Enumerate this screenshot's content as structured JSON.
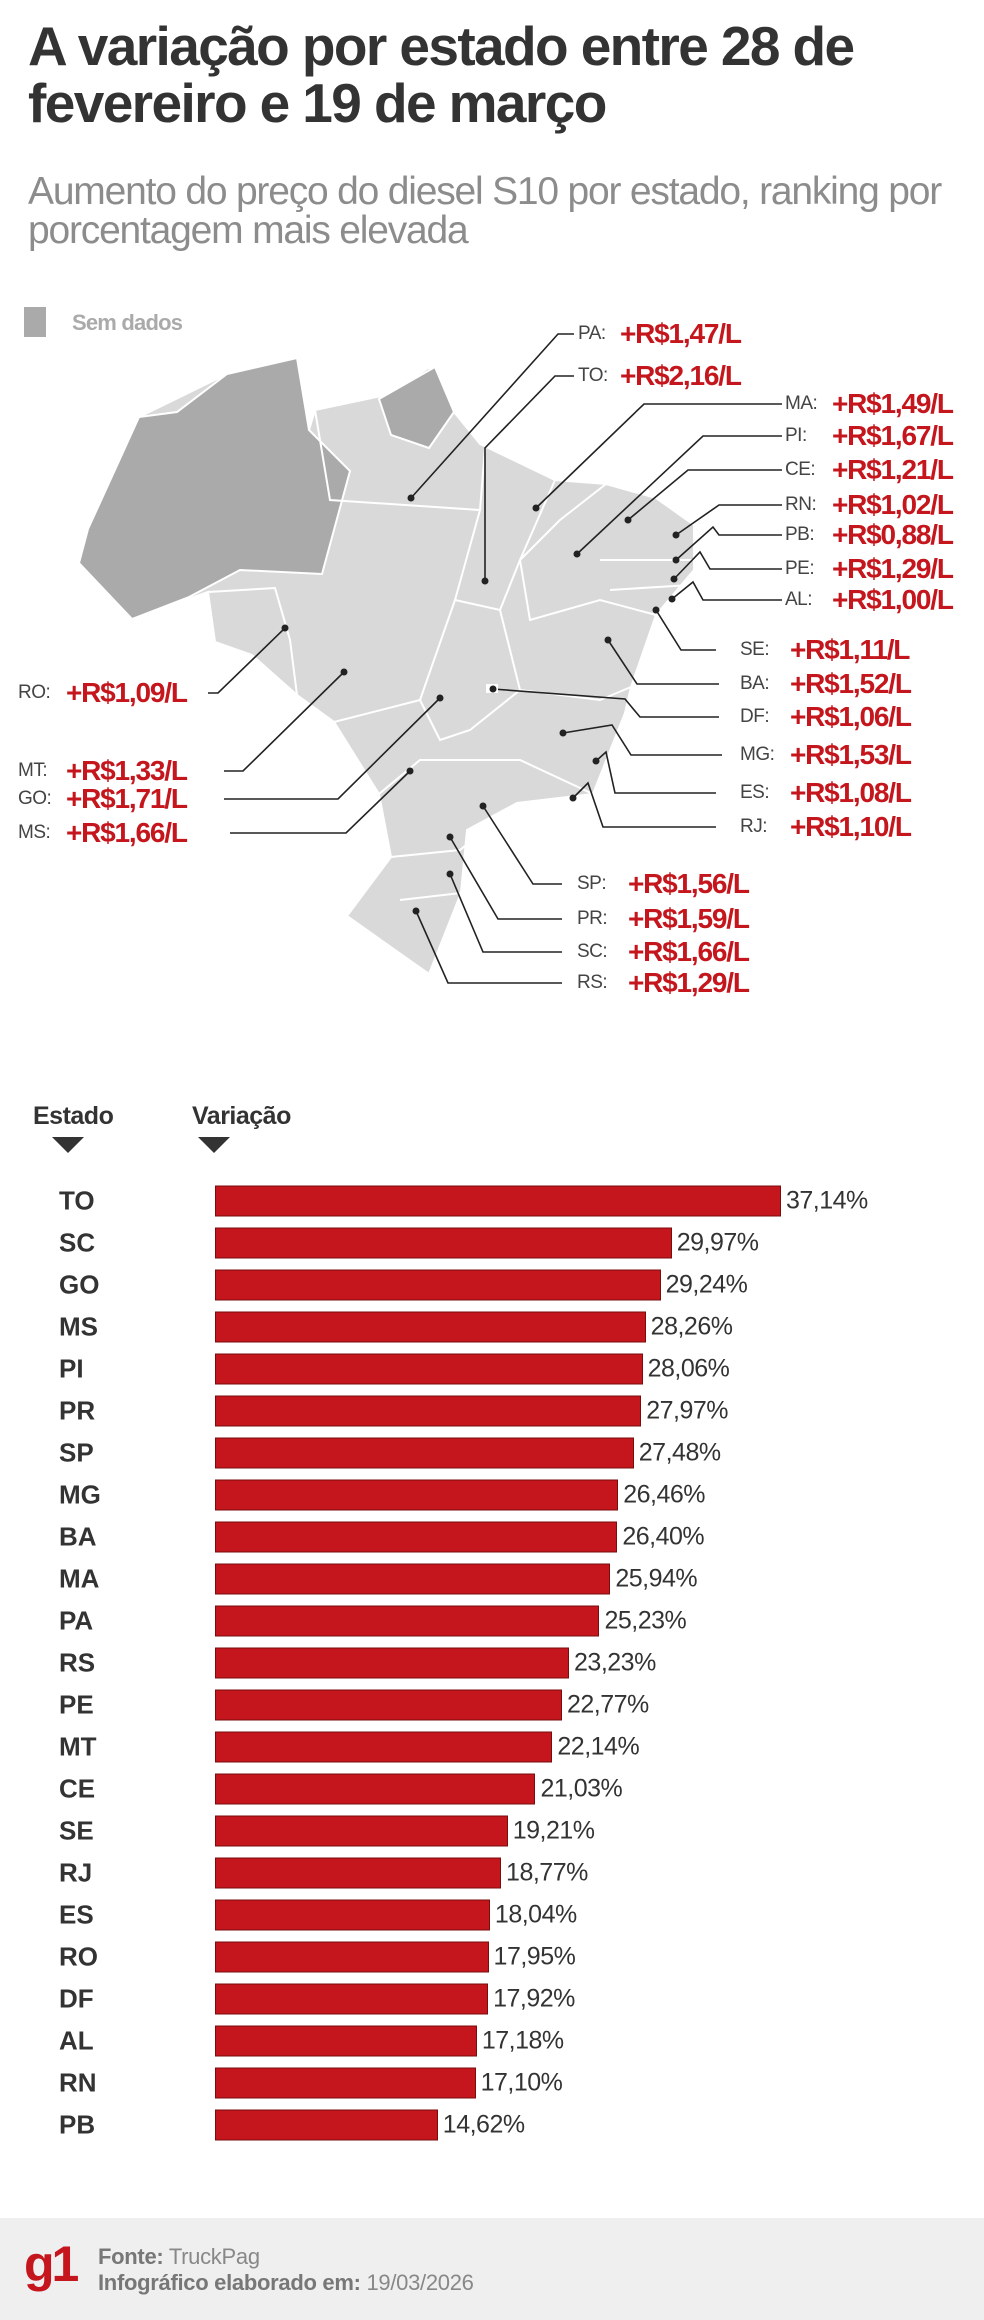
{
  "header": {
    "title": "A variação por estado entre 28 de fevereiro e 19 de março",
    "subtitle": "Aumento do preço do diesel S10 por estado, ranking por porcentagem mais elevada"
  },
  "map": {
    "legend_label": "Sem dados",
    "colors": {
      "no_data": "#aaaaaa",
      "state": "#d9d9d9",
      "value": "#c4161c"
    },
    "states": [
      {
        "uf": "PA:",
        "value": "+R$1,47/L"
      },
      {
        "uf": "TO:",
        "value": "+R$2,16/L"
      },
      {
        "uf": "MA:",
        "value": "+R$1,49/L"
      },
      {
        "uf": "PI:",
        "value": "+R$1,67/L"
      },
      {
        "uf": "CE:",
        "value": "+R$1,21/L"
      },
      {
        "uf": "RN:",
        "value": "+R$1,02/L"
      },
      {
        "uf": "PB:",
        "value": "+R$0,88/L"
      },
      {
        "uf": "PE:",
        "value": "+R$1,29/L"
      },
      {
        "uf": "AL:",
        "value": "+R$1,00/L"
      },
      {
        "uf": "SE:",
        "value": "+R$1,11/L"
      },
      {
        "uf": "BA:",
        "value": "+R$1,52/L"
      },
      {
        "uf": "DF:",
        "value": "+R$1,06/L"
      },
      {
        "uf": "MG:",
        "value": "+R$1,53/L"
      },
      {
        "uf": "ES:",
        "value": "+R$1,08/L"
      },
      {
        "uf": "RJ:",
        "value": "+R$1,10/L"
      },
      {
        "uf": "SP:",
        "value": "+R$1,56/L"
      },
      {
        "uf": "PR:",
        "value": "+R$1,59/L"
      },
      {
        "uf": "SC:",
        "value": "+R$1,66/L"
      },
      {
        "uf": "RS:",
        "value": "+R$1,29/L"
      },
      {
        "uf": "RO:",
        "value": "+R$1,09/L"
      },
      {
        "uf": "MT:",
        "value": "+R$1,33/L"
      },
      {
        "uf": "GO:",
        "value": "+R$1,71/L"
      },
      {
        "uf": "MS:",
        "value": "+R$1,66/L"
      }
    ]
  },
  "chart_data": {
    "type": "bar",
    "orientation": "horizontal",
    "xlabel": "Variação",
    "ylabel": "Estado",
    "categories": [
      "TO",
      "SC",
      "GO",
      "MS",
      "PI",
      "PR",
      "SP",
      "MG",
      "BA",
      "MA",
      "PA",
      "RS",
      "PE",
      "MT",
      "CE",
      "SE",
      "RJ",
      "ES",
      "RO",
      "DF",
      "AL",
      "RN",
      "PB"
    ],
    "values": [
      37.14,
      29.97,
      29.24,
      28.26,
      28.06,
      27.97,
      27.48,
      26.46,
      26.4,
      25.94,
      25.23,
      23.23,
      22.77,
      22.14,
      21.03,
      19.21,
      18.77,
      18.04,
      17.95,
      17.92,
      17.18,
      17.1,
      14.62
    ],
    "value_labels": [
      "37,14%",
      "29,97%",
      "29,24%",
      "28,26%",
      "28,06%",
      "27,97%",
      "27,48%",
      "26,46%",
      "26,40%",
      "25,94%",
      "25,23%",
      "23,23%",
      "22,77%",
      "22,14%",
      "21,03%",
      "19,21%",
      "18,77%",
      "18,04%",
      "17,95%",
      "17,92%",
      "17,18%",
      "17,10%",
      "14,62%"
    ],
    "color": "#c4161c"
  },
  "footer": {
    "logo": "g1",
    "source_label": "Fonte:",
    "source": "TruckPag",
    "date_label": "Infográfico elaborado em:",
    "date": "19/03/2026"
  }
}
